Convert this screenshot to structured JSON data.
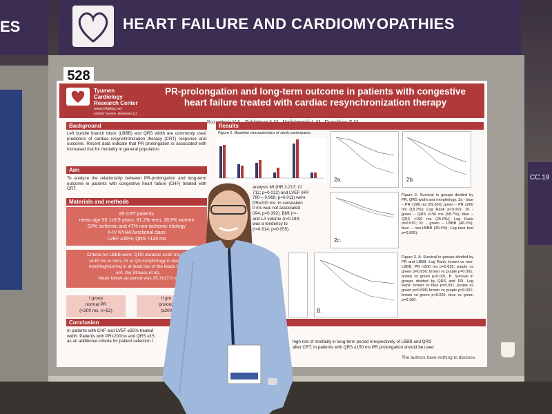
{
  "banner": {
    "left_fragment": "ES",
    "title": "HEART FAILURE AND CARDIOMYOPATHIES"
  },
  "board_number": "528",
  "side_sign": "CC.19",
  "poster": {
    "institution": {
      "name": "Tyumen Cardiology Research Center",
      "url": "www.infarkta.net",
      "address": "625026 Tyumen, Melnikaite 111"
    },
    "title": "PR-prolongation and long-term outcome in patients with congestive heart failure treated with cardiac resynchronization therapy",
    "authors": "Kuznetsov V.A., Soldatova A.M., Malishevskii L.M., Dyachkov S.M.",
    "background": {
      "heading": "Background",
      "text": "Left bundle branch block (LBBB) and QRS width are commonly used predictors of cardiac resynchronization therapy (CRT) response and outcome. Recent data indicate that PR prolongation is associated with increased risk for mortality in general population."
    },
    "aim": {
      "heading": "Aim",
      "text": "To analyze the relationship between PR-prolongation and long-term outcome in patients with congestive heart failure (CHF) treated with CRT."
    },
    "methods": {
      "heading": "Materials and methods",
      "patients": [
        "85 CRT patients",
        "mean age 55.1±9.9 years; 81.2% men, 18.8% women",
        "53% ischemic and 47% non-ischemic etiology",
        "II-IV NYHA functional class",
        "LVEF ≤35%; QRS >120 ms"
      ],
      "criteria": [
        "Criteria for LBBB were: QRS duration ≥130 ms in w",
        "≥140 ms in men, rS or QS morphology in lead V1",
        "notching/slurring in at least two of the leads V1, V",
        "aVL (by Strauss et al).",
        "Mean follow-up period was 25.3±17.0 m"
      ],
      "group1": [
        "I group",
        "normal PR",
        "(<200 ms; n=52)"
      ],
      "group2": [
        "II gro",
        "prolong",
        "(≥200"
      ]
    },
    "results": {
      "heading": "Results",
      "figure1_caption": "Figure 1. Baseline characteristics of study participants.",
      "text_fragments": [
        "analysis MI (HR 3.217; CI",
        "712; p=0.022) and LVEF (HR",
        "780 – 0.968; p=0.011) were",
        "PR≥200 ms. In correlation",
        "0 ms was not associated",
        "094; p=0.392), BMI (r=-",
        "and LA volume (r=0.189;",
        "was a tendency to",
        "(r=0.614; p=0.055)."
      ],
      "plot_labels": [
        "2a.",
        "2b.",
        "2c.",
        "B."
      ],
      "figure2_caption": "Figure 2. Survival in groups divided by PR, QRS width and morphology. 2a - blue – PR <200 ms (59.6%); green – PR ≥200 ms (18.2%); Log Rank p<0.001; 2b - green – QRS ≥150 ms (58.7%); blue – QRS <150 ms (25.0%); Log Rank p=0.015; 2c - green – LBBB (46.2%); blue – non-LBBB (39.4%); Log-rank test p=0.995).",
      "figure3_caption": "Figure 3. A. Survival in groups divided by PR and LBBB. Log Rank: brown vs non-LBBB, PR <200 ms p=0.635; purple vs green p=0.936; brown vs purple p=0.001; brown vs green p<0.001. B. Survival in groups divided by QRS and PR. Log Rank: brown vs blue p=0.031; purple vs green p=0.698; brown vs purple p=0.001; brown vs green p<0.001; blue vs green p=0.160."
    },
    "conclusion": {
      "heading": "Conclusion",
      "left_lines": [
        "In patients with CHF and LVEF ≤35% treated",
        "width. Patients with PR<200ms and QRS ≥15",
        "as an additional criteria for patient selection t"
      ],
      "right_lines": [
        "high risk of mortality in long-term period irrespectively of LBBB and QRS",
        "after CRT. In patients with QRS ≥150 ms PR prolongation should be used"
      ]
    },
    "disclosure": "The authors have nothing to disclose."
  }
}
